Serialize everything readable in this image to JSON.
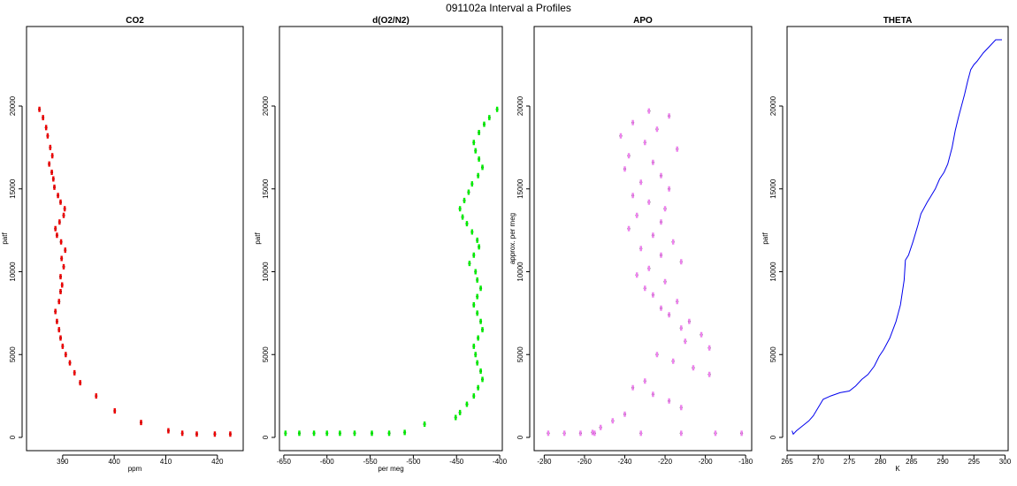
{
  "figure": {
    "title": "091102a   Interval a Profiles"
  },
  "chart_data": [
    {
      "type": "scatter",
      "title": "CO2",
      "xlabel": "ppm",
      "ylabel": "patf",
      "xlim": [
        383,
        425
      ],
      "ylim": [
        -800,
        24800
      ],
      "xticks": [
        390,
        400,
        410,
        420
      ],
      "yticks": [
        0,
        5000,
        10000,
        15000,
        20000
      ],
      "color": "#ee0000",
      "grid": false,
      "x": [
        385.5,
        386.2,
        386.8,
        387.1,
        387.6,
        388.0,
        387.4,
        387.9,
        388.2,
        388.4,
        389.1,
        389.6,
        390.4,
        390.2,
        389.4,
        388.6,
        388.9,
        389.7,
        390.5,
        389.8,
        390.2,
        389.6,
        389.9,
        389.6,
        389.3,
        388.6,
        388.9,
        389.3,
        389.6,
        390.0,
        390.6,
        391.4,
        392.3,
        393.4,
        396.5,
        400.1,
        405.2,
        410.5,
        413.2,
        416.0,
        419.5,
        422.5
      ],
      "y": [
        19800,
        19300,
        18700,
        18200,
        17500,
        17000,
        16500,
        16000,
        15600,
        15100,
        14600,
        14200,
        13800,
        13400,
        13000,
        12600,
        12200,
        11800,
        11300,
        10800,
        10300,
        9700,
        9200,
        8800,
        8200,
        7600,
        7000,
        6500,
        6000,
        5500,
        5000,
        4500,
        3900,
        3300,
        2500,
        1600,
        900,
        400,
        250,
        200,
        200,
        200
      ]
    },
    {
      "type": "scatter",
      "title": "d(O2/N2)",
      "xlabel": "per meg",
      "ylabel": "patf",
      "xlim": [
        -655,
        -397
      ],
      "ylim": [
        -800,
        24800
      ],
      "xticks": [
        -650,
        -600,
        -550,
        -500,
        -450,
        -400
      ],
      "yticks": [
        0,
        5000,
        10000,
        15000,
        20000
      ],
      "color": "#00ee00",
      "grid": false,
      "x": [
        -403,
        -412,
        -418,
        -424,
        -430,
        -428,
        -424,
        -420,
        -425,
        -432,
        -436,
        -441,
        -446,
        -443,
        -438,
        -432,
        -426,
        -424,
        -430,
        -435,
        -428,
        -426,
        -422,
        -426,
        -430,
        -426,
        -422,
        -420,
        -425,
        -430,
        -428,
        -426,
        -422,
        -420,
        -425,
        -430,
        -438,
        -446,
        -451,
        -487,
        -510,
        -528,
        -548,
        -568,
        -585,
        -600,
        -615,
        -632,
        -648
      ],
      "y": [
        19800,
        19300,
        18900,
        18400,
        17800,
        17300,
        16800,
        16300,
        15800,
        15300,
        14800,
        14300,
        13800,
        13300,
        12900,
        12400,
        11900,
        11500,
        11000,
        10500,
        10000,
        9500,
        9000,
        8500,
        8000,
        7500,
        7000,
        6500,
        6000,
        5500,
        5000,
        4500,
        4000,
        3500,
        3000,
        2500,
        2000,
        1500,
        1200,
        800,
        300,
        250,
        250,
        250,
        250,
        250,
        250,
        250,
        250
      ]
    },
    {
      "type": "scatter",
      "title": "APO",
      "xlabel": "",
      "ylabel": "approx. per meg",
      "xlim": [
        -285,
        -177
      ],
      "ylim": [
        -800,
        24800
      ],
      "xticks": [
        -280,
        -260,
        -240,
        -220,
        -200,
        -180
      ],
      "yticks": [
        0,
        5000,
        10000,
        15000,
        20000
      ],
      "color": "#ee82ee",
      "grid": false,
      "x": [
        -228,
        -218,
        -236,
        -224,
        -242,
        -230,
        -214,
        -238,
        -226,
        -240,
        -222,
        -232,
        -218,
        -236,
        -228,
        -220,
        -234,
        -222,
        -238,
        -226,
        -216,
        -232,
        -222,
        -212,
        -228,
        -234,
        -220,
        -230,
        -226,
        -214,
        -222,
        -218,
        -208,
        -212,
        -202,
        -210,
        -198,
        -224,
        -216,
        -206,
        -198,
        -230,
        -236,
        -226,
        -218,
        -212,
        -240,
        -246,
        -252,
        -256,
        -262,
        -270,
        -278,
        -255,
        -232,
        -212,
        -195,
        -182
      ],
      "y": [
        19700,
        19400,
        19000,
        18600,
        18200,
        17800,
        17400,
        17000,
        16600,
        16200,
        15800,
        15400,
        15000,
        14600,
        14200,
        13800,
        13400,
        13000,
        12600,
        12200,
        11800,
        11400,
        11000,
        10600,
        10200,
        9800,
        9400,
        9000,
        8600,
        8200,
        7800,
        7400,
        7000,
        6600,
        6200,
        5800,
        5400,
        5000,
        4600,
        4200,
        3800,
        3400,
        3000,
        2600,
        2200,
        1800,
        1400,
        1000,
        600,
        300,
        250,
        250,
        250,
        250,
        250,
        250,
        250,
        250
      ]
    },
    {
      "type": "line",
      "title": "THETA",
      "xlabel": "K",
      "ylabel": "patf",
      "xlim": [
        265,
        300.5
      ],
      "ylim": [
        -800,
        24800
      ],
      "xticks": [
        265,
        270,
        275,
        280,
        285,
        290,
        295,
        300
      ],
      "yticks": [
        0,
        5000,
        10000,
        15000,
        20000
      ],
      "color": "#0000ee",
      "grid": false,
      "x": [
        265.8,
        266.0,
        266.5,
        267.5,
        268.5,
        269.2,
        270.0,
        270.8,
        272.0,
        273.5,
        275.0,
        276.0,
        277.0,
        278.0,
        279.0,
        279.8,
        280.5,
        281.5,
        282.5,
        283.2,
        283.8,
        284.0,
        284.5,
        285.2,
        286.0,
        286.5,
        287.5,
        288.0,
        288.8,
        289.5,
        290.2,
        290.8,
        291.5,
        292.0,
        292.5,
        293.0,
        293.5,
        294.0,
        294.5,
        295.0,
        295.5,
        296.5,
        297.5,
        298.5,
        299.5
      ],
      "y": [
        400,
        200,
        400,
        700,
        1000,
        1300,
        1800,
        2300,
        2500,
        2700,
        2800,
        3100,
        3500,
        3800,
        4300,
        4900,
        5300,
        6000,
        7000,
        8000,
        9500,
        10700,
        11000,
        11800,
        12800,
        13500,
        14200,
        14500,
        15000,
        15600,
        16000,
        16500,
        17500,
        18500,
        19300,
        20000,
        20700,
        21500,
        22200,
        22500,
        22700,
        23200,
        23600,
        24000,
        24000
      ]
    }
  ]
}
